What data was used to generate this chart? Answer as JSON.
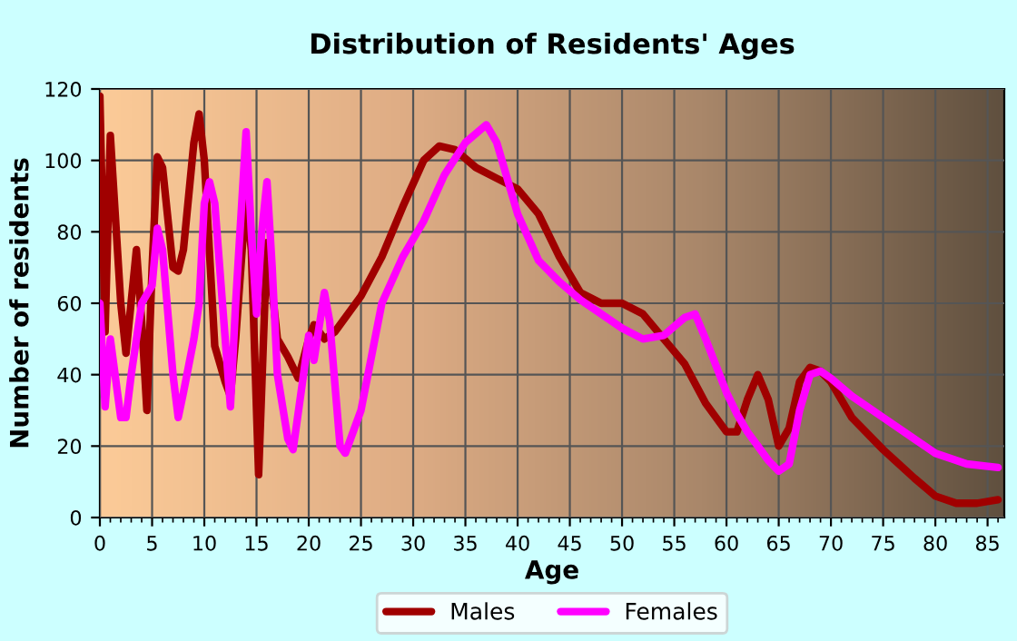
{
  "chart_data": {
    "type": "line",
    "title": "Distribution of Residents' Ages",
    "xlabel": "Age",
    "ylabel": "Number of residents",
    "xlim": [
      0,
      86.6
    ],
    "xticks": [
      0,
      5,
      10,
      15,
      20,
      25,
      30,
      35,
      40,
      45,
      50,
      55,
      60,
      65,
      70,
      75,
      80,
      85
    ],
    "ylim": [
      0,
      120
    ],
    "yticks": [
      0,
      20,
      40,
      60,
      80,
      100,
      120
    ],
    "grid": true,
    "legend": "bottom",
    "marker": "none",
    "line_style": "solid",
    "series": [
      {
        "name": "Males",
        "color": "#a00000",
        "x": [
          0,
          0.5,
          1,
          2,
          2.5,
          3.5,
          4,
          4.5,
          5,
          5.5,
          6,
          7,
          7.5,
          8,
          9,
          9.5,
          10,
          11,
          12,
          12.5,
          13,
          14,
          14.5,
          15.2,
          16,
          17,
          18,
          19,
          20,
          20.5,
          21.5,
          22.5,
          24,
          25,
          27,
          29,
          31,
          32.5,
          34,
          36,
          38,
          40,
          42,
          44,
          46,
          48,
          50,
          52,
          54,
          56,
          58,
          60,
          61,
          62,
          63,
          64,
          65,
          66,
          67,
          68,
          69,
          70,
          72,
          75,
          78,
          80,
          82,
          84,
          86
        ],
        "values": [
          118,
          52,
          107,
          60,
          46,
          75,
          55,
          30,
          70,
          101,
          98,
          70,
          69,
          75,
          105,
          113,
          100,
          48,
          38,
          34,
          50,
          90,
          75,
          12,
          77,
          50,
          45,
          39,
          50,
          54,
          50,
          52,
          58,
          62,
          73,
          87,
          100,
          104,
          103,
          98,
          95,
          92,
          85,
          73,
          63,
          60,
          60,
          57,
          50,
          43,
          32,
          24,
          24,
          33,
          40,
          33,
          20,
          25,
          38,
          42,
          41,
          38,
          28,
          19,
          11,
          6,
          4,
          4,
          5
        ]
      },
      {
        "name": "Females",
        "color": "#ff00ff",
        "x": [
          0,
          0.5,
          1,
          2,
          2.5,
          3,
          4,
          5,
          5.5,
          6,
          7,
          7.5,
          8,
          9,
          9.5,
          10,
          10.5,
          11,
          12,
          12.5,
          13,
          14,
          14.5,
          15,
          15.5,
          16,
          16.5,
          17,
          18,
          18.5,
          19.5,
          20,
          20.5,
          21.5,
          22,
          23,
          23.5,
          25,
          26,
          27,
          29,
          31,
          33,
          35,
          37,
          38,
          40,
          42,
          44,
          46,
          48,
          50,
          52,
          54,
          56,
          57,
          58,
          60,
          61,
          62,
          63,
          64,
          65,
          66,
          67,
          68,
          69,
          70,
          72,
          75,
          78,
          80,
          83,
          86
        ],
        "values": [
          60,
          31,
          50,
          28,
          28,
          40,
          60,
          65,
          81,
          75,
          40,
          28,
          35,
          50,
          60,
          88,
          94,
          88,
          50,
          31,
          60,
          108,
          80,
          57,
          80,
          94,
          70,
          40,
          22,
          19,
          40,
          51,
          44,
          63,
          55,
          20,
          18,
          30,
          45,
          60,
          73,
          83,
          96,
          105,
          110,
          105,
          85,
          72,
          66,
          61,
          57,
          53,
          50,
          51,
          56,
          57,
          50,
          35,
          29,
          24,
          20,
          16,
          13,
          15,
          30,
          40,
          41,
          39,
          34,
          28,
          22,
          18,
          15,
          14
        ]
      }
    ]
  }
}
